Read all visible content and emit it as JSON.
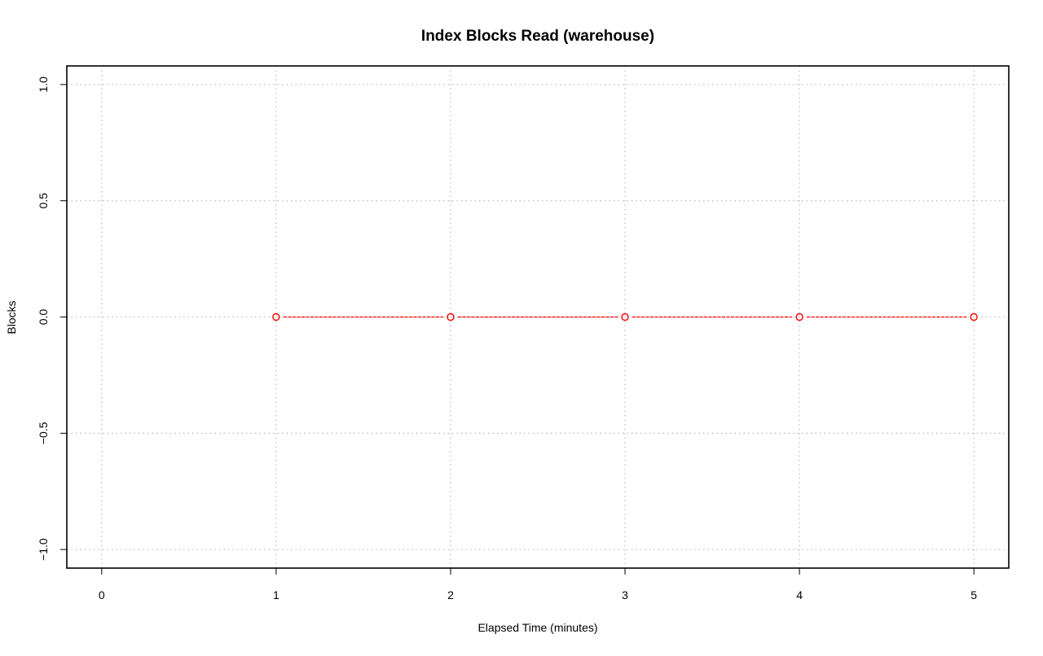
{
  "chart_data": {
    "type": "line",
    "title": "Index Blocks Read (warehouse)",
    "xlabel": "Elapsed Time (minutes)",
    "ylabel": "Blocks",
    "xlim": [
      -0.2,
      5.2
    ],
    "ylim": [
      -1.08,
      1.08
    ],
    "x_ticks": [
      0,
      1,
      2,
      3,
      4,
      5
    ],
    "x_tick_labels": [
      "0",
      "1",
      "2",
      "3",
      "4",
      "5"
    ],
    "y_ticks": [
      -1.0,
      -0.5,
      0.0,
      0.5,
      1.0
    ],
    "y_tick_labels": [
      "−1.0",
      "−0.5",
      "0.0",
      "0.5",
      "1.0"
    ],
    "grid": true,
    "series": [
      {
        "x": [
          1,
          2,
          3,
          4,
          5
        ],
        "values": [
          0,
          0,
          0,
          0,
          0
        ],
        "color": "#ff0000",
        "line_style": "dashed",
        "marker": "open-circle"
      }
    ]
  }
}
